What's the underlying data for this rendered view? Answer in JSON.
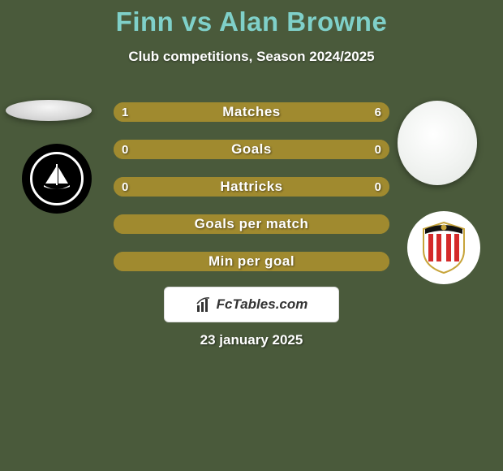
{
  "background_color": "#4a5a3b",
  "title": {
    "text": "Finn vs Alan Browne",
    "color": "#7fd0c9",
    "fontsize": 33
  },
  "subtitle": {
    "text": "Club competitions, Season 2024/2025",
    "color": "#ffffff",
    "fontsize": 17
  },
  "bars": {
    "track_color": "#a08a2f",
    "left_fill_color": "#a08a2f",
    "right_fill_color": "#a08a2f",
    "label_color": "#ffffff",
    "value_color": "#ffffff",
    "rows": [
      {
        "label": "Matches",
        "left_value": "1",
        "right_value": "6",
        "left_share": 0.143,
        "right_share": 0.857
      },
      {
        "label": "Goals",
        "left_value": "0",
        "right_value": "0",
        "left_share": 0.5,
        "right_share": 0.5
      },
      {
        "label": "Hattricks",
        "left_value": "0",
        "right_value": "0",
        "left_share": 0.5,
        "right_share": 0.5
      },
      {
        "label": "Goals per match",
        "left_value": "",
        "right_value": "",
        "left_share": 0.5,
        "right_share": 0.5
      },
      {
        "label": "Min per goal",
        "left_value": "",
        "right_value": "",
        "left_share": 0.5,
        "right_share": 0.5
      }
    ]
  },
  "watermark": {
    "text": "FcTables.com"
  },
  "date": {
    "text": "23 january 2025",
    "color": "#ffffff"
  },
  "left_club": {
    "name": "plymouth-argyle-badge",
    "badge_bg": "#000000"
  },
  "right_club": {
    "name": "sunderland-badge",
    "stripe_color": "#d42a2a",
    "gold_color": "#c7a43a"
  }
}
